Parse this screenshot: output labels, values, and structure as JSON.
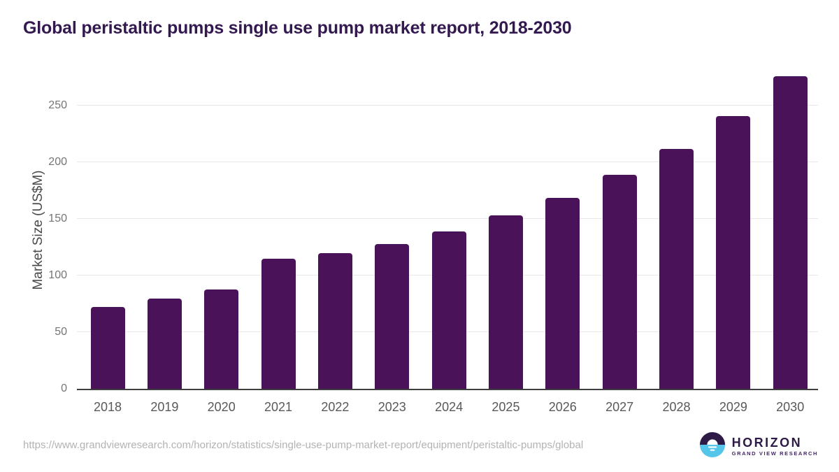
{
  "title": "Global peristaltic pumps single use pump market report, 2018-2030",
  "chart_data": {
    "type": "bar",
    "title": "Global peristaltic pumps single use pump market report, 2018-2030",
    "categories": [
      "2018",
      "2019",
      "2020",
      "2021",
      "2022",
      "2023",
      "2024",
      "2025",
      "2026",
      "2027",
      "2028",
      "2029",
      "2030"
    ],
    "values": [
      72,
      80,
      88,
      115,
      120,
      128,
      139,
      153,
      169,
      189,
      212,
      241,
      276
    ],
    "xlabel": "",
    "ylabel": "Market Size (US$M)",
    "ylim": [
      0,
      283
    ],
    "yticks": [
      0,
      50,
      100,
      150,
      200,
      250
    ],
    "grid": true,
    "legend": false,
    "bar_color": "#4a1259"
  },
  "colors": {
    "title": "#33194f",
    "bar": "#4a1259",
    "gridline": "#e8e8e8",
    "axis_line": "#3f3f3f",
    "tick_label": "#757575",
    "x_label": "#595959",
    "url_text": "#b3b3b3",
    "logo_purple": "#2e1a47",
    "logo_blue": "#56c5ea"
  },
  "footer": {
    "source_url": "https://www.grandviewresearch.com/horizon/statistics/single-use-pump-market-report/equipment/peristaltic-pumps/global",
    "logo": {
      "brand": "HORIZON",
      "tagline": "GRAND VIEW RESEARCH"
    }
  }
}
